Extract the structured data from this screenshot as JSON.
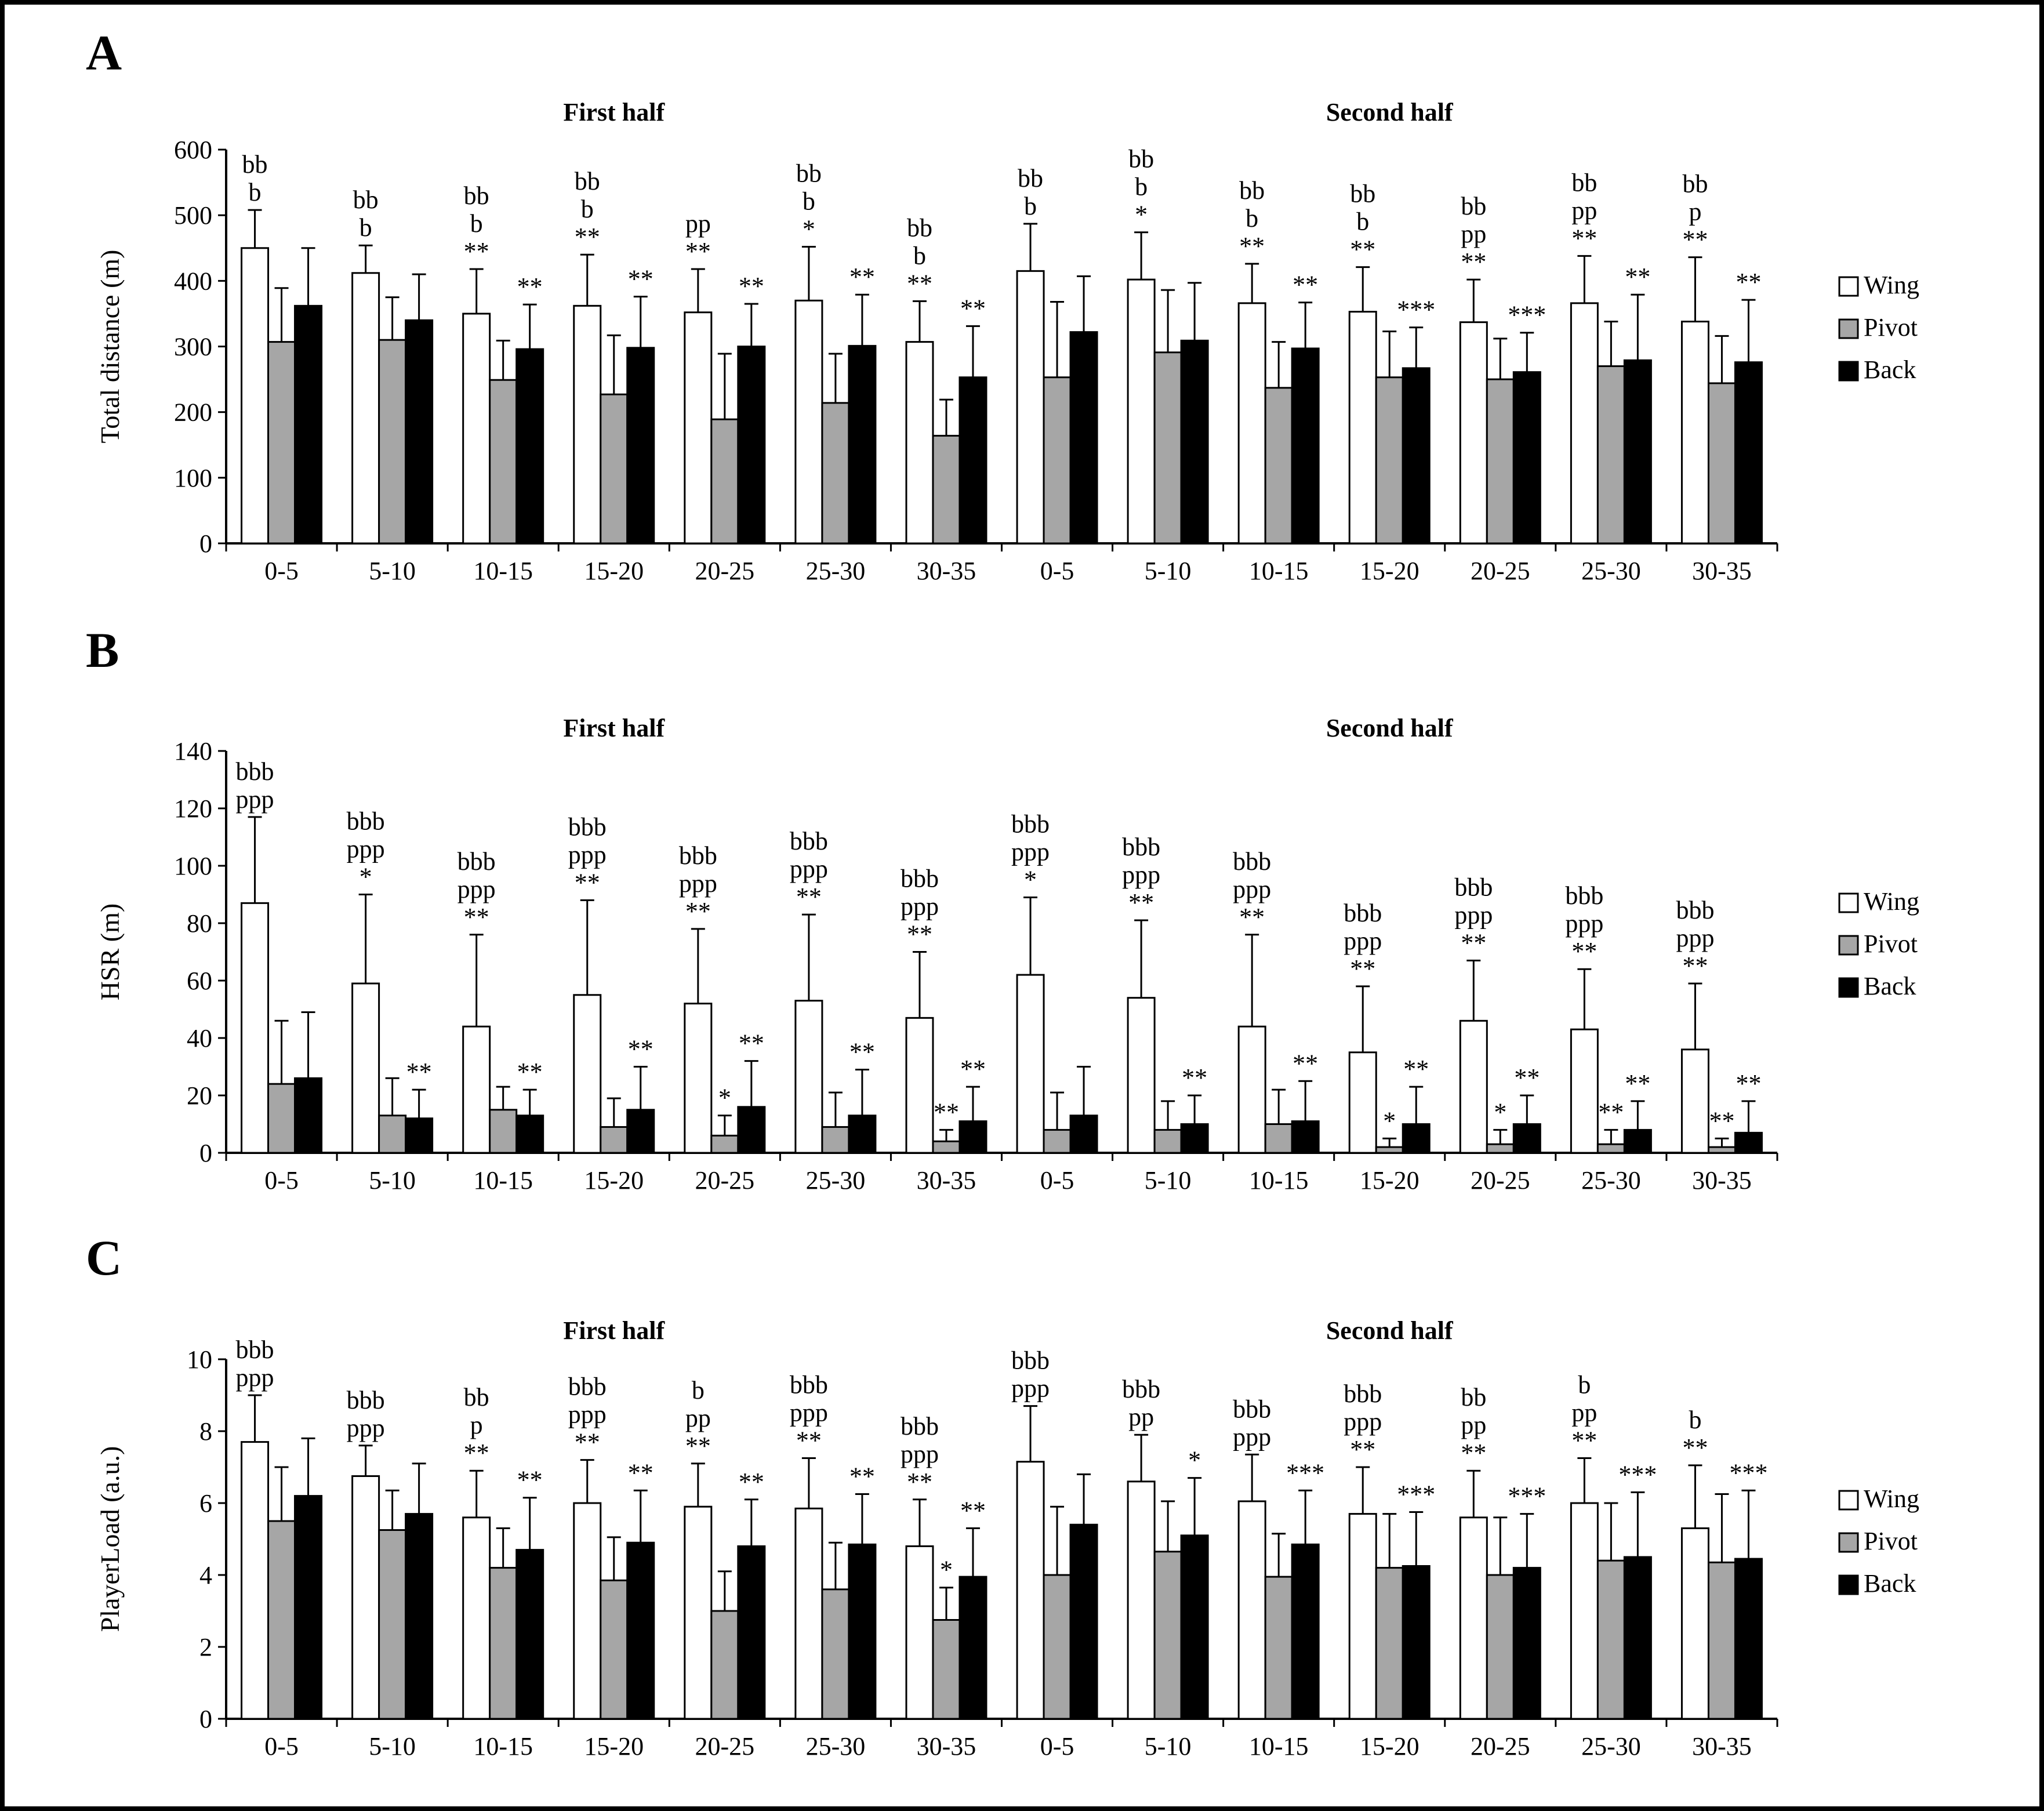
{
  "figure": {
    "background": "#ffffff",
    "border_color": "#000000"
  },
  "legend": {
    "position": "right",
    "items": [
      {
        "label": "Wing",
        "fill": "#ffffff"
      },
      {
        "label": "Pivot",
        "fill": "#a6a6a6"
      },
      {
        "label": "Back",
        "fill": "#000000"
      }
    ]
  },
  "chart_data": [
    {
      "type": "bar",
      "panel_label": "A",
      "ylabel": "Total distance (m)",
      "ylim": [
        0,
        600
      ],
      "ytick_step": 100,
      "grid": false,
      "section_titles": [
        "First half",
        "Second half"
      ],
      "categories": [
        "0-5",
        "5-10",
        "10-15",
        "15-20",
        "20-25",
        "25-30",
        "30-35",
        "0-5",
        "5-10",
        "10-15",
        "15-20",
        "20-25",
        "25-30",
        "30-35"
      ],
      "series": [
        {
          "name": "Wing",
          "fill": "#ffffff",
          "values": [
            450,
            412,
            350,
            362,
            352,
            370,
            307,
            415,
            402,
            366,
            353,
            337,
            366,
            338
          ],
          "errors": [
            58,
            42,
            68,
            78,
            66,
            82,
            62,
            72,
            72,
            60,
            68,
            65,
            72,
            98
          ],
          "annotations": [
            [
              "bb",
              "b"
            ],
            [
              "bb",
              "b"
            ],
            [
              "bb",
              "b",
              "**"
            ],
            [
              "bb",
              "b",
              "**"
            ],
            [
              "pp",
              "**"
            ],
            [
              "bb",
              "b",
              "*"
            ],
            [
              "bb",
              "b",
              "**"
            ],
            [
              "bb",
              "b"
            ],
            [
              "bb",
              "b",
              "*"
            ],
            [
              "bb",
              "b",
              "**"
            ],
            [
              "bb",
              "b",
              "**"
            ],
            [
              "bb",
              "pp",
              "**"
            ],
            [
              "bb",
              "pp",
              "**"
            ],
            [
              "bb",
              "p",
              "**"
            ]
          ]
        },
        {
          "name": "Pivot",
          "fill": "#a6a6a6",
          "values": [
            307,
            310,
            249,
            227,
            189,
            214,
            164,
            253,
            291,
            237,
            253,
            250,
            270,
            244
          ],
          "errors": [
            82,
            65,
            60,
            90,
            100,
            75,
            55,
            115,
            95,
            70,
            70,
            62,
            68,
            72
          ],
          "annotations": [
            null,
            null,
            null,
            null,
            null,
            null,
            null,
            null,
            null,
            null,
            null,
            null,
            null,
            null
          ]
        },
        {
          "name": "Back",
          "fill": "#000000",
          "values": [
            362,
            340,
            296,
            298,
            300,
            301,
            253,
            322,
            309,
            297,
            267,
            261,
            279,
            276
          ],
          "errors": [
            88,
            70,
            68,
            78,
            65,
            78,
            78,
            85,
            88,
            70,
            62,
            60,
            100,
            95
          ],
          "annotations": [
            null,
            null,
            [
              "**"
            ],
            [
              "**"
            ],
            [
              "**"
            ],
            [
              "**"
            ],
            [
              "**"
            ],
            null,
            null,
            [
              "**"
            ],
            [
              "***"
            ],
            [
              "***"
            ],
            [
              "**"
            ],
            [
              "**"
            ]
          ]
        }
      ]
    },
    {
      "type": "bar",
      "panel_label": "B",
      "ylabel": "HSR (m)",
      "ylim": [
        0,
        140
      ],
      "ytick_step": 20,
      "grid": false,
      "section_titles": [
        "First half",
        "Second half"
      ],
      "categories": [
        "0-5",
        "5-10",
        "10-15",
        "15-20",
        "20-25",
        "25-30",
        "30-35",
        "0-5",
        "5-10",
        "10-15",
        "15-20",
        "20-25",
        "25-30",
        "30-35"
      ],
      "series": [
        {
          "name": "Wing",
          "fill": "#ffffff",
          "values": [
            87,
            59,
            44,
            55,
            52,
            53,
            47,
            62,
            54,
            44,
            35,
            46,
            43,
            36
          ],
          "errors": [
            30,
            31,
            32,
            33,
            26,
            30,
            23,
            27,
            27,
            32,
            23,
            21,
            21,
            23
          ],
          "annotations": [
            [
              "bbb",
              "ppp"
            ],
            [
              "bbb",
              "ppp",
              "*"
            ],
            [
              "bbb",
              "ppp",
              "**"
            ],
            [
              "bbb",
              "ppp",
              "**"
            ],
            [
              "bbb",
              "ppp",
              "**"
            ],
            [
              "bbb",
              "ppp",
              "**"
            ],
            [
              "bbb",
              "ppp",
              "**"
            ],
            [
              "bbb",
              "ppp",
              "*"
            ],
            [
              "bbb",
              "ppp",
              "**"
            ],
            [
              "bbb",
              "ppp",
              "**"
            ],
            [
              "bbb",
              "ppp",
              "**"
            ],
            [
              "bbb",
              "ppp",
              "**"
            ],
            [
              "bbb",
              "ppp",
              "**"
            ],
            [
              "bbb",
              "ppp",
              "**"
            ]
          ]
        },
        {
          "name": "Pivot",
          "fill": "#a6a6a6",
          "values": [
            24,
            13,
            15,
            9,
            6,
            9,
            4,
            8,
            8,
            10,
            2,
            3,
            3,
            2
          ],
          "errors": [
            22,
            13,
            8,
            10,
            7,
            12,
            4,
            13,
            10,
            12,
            3,
            5,
            5,
            3
          ],
          "annotations": [
            null,
            null,
            null,
            null,
            [
              "*"
            ],
            null,
            [
              "**"
            ],
            null,
            null,
            null,
            [
              "*"
            ],
            [
              "*"
            ],
            [
              "**"
            ],
            [
              "**"
            ]
          ]
        },
        {
          "name": "Back",
          "fill": "#000000",
          "values": [
            26,
            12,
            13,
            15,
            16,
            13,
            11,
            13,
            10,
            11,
            10,
            10,
            8,
            7
          ],
          "errors": [
            23,
            10,
            9,
            15,
            16,
            16,
            12,
            17,
            10,
            14,
            13,
            10,
            10,
            11
          ],
          "annotations": [
            null,
            [
              "**"
            ],
            [
              "**"
            ],
            [
              "**"
            ],
            [
              "**"
            ],
            [
              "**"
            ],
            [
              "**"
            ],
            null,
            [
              "**"
            ],
            [
              "**"
            ],
            [
              "**"
            ],
            [
              "**"
            ],
            [
              "**"
            ],
            [
              "**"
            ]
          ]
        }
      ]
    },
    {
      "type": "bar",
      "panel_label": "C",
      "ylabel": "PlayerLoad (a.u.)",
      "ylim": [
        0,
        10
      ],
      "ytick_step": 2,
      "grid": false,
      "section_titles": [
        "First half",
        "Second half"
      ],
      "categories": [
        "0-5",
        "5-10",
        "10-15",
        "15-20",
        "20-25",
        "25-30",
        "30-35",
        "0-5",
        "5-10",
        "10-15",
        "15-20",
        "20-25",
        "25-30",
        "30-35"
      ],
      "series": [
        {
          "name": "Wing",
          "fill": "#ffffff",
          "values": [
            7.7,
            6.75,
            5.6,
            6.0,
            5.9,
            5.85,
            4.8,
            7.15,
            6.6,
            6.05,
            5.7,
            5.6,
            6.0,
            5.3
          ],
          "errors": [
            1.3,
            0.85,
            1.3,
            1.2,
            1.2,
            1.4,
            1.3,
            1.55,
            1.3,
            1.3,
            1.3,
            1.3,
            1.25,
            1.75
          ],
          "annotations": [
            [
              "bbb",
              "ppp"
            ],
            [
              "bbb",
              "ppp"
            ],
            [
              "bb",
              "p",
              "**"
            ],
            [
              "bbb",
              "ppp",
              "**"
            ],
            [
              "b",
              "pp",
              "**"
            ],
            [
              "bbb",
              "ppp",
              "**"
            ],
            [
              "bbb",
              "ppp",
              "**"
            ],
            [
              "bbb",
              "ppp"
            ],
            [
              "bbb",
              "pp"
            ],
            [
              "bbb",
              "ppp"
            ],
            [
              "bbb",
              "ppp",
              "**"
            ],
            [
              "bb",
              "pp",
              "**"
            ],
            [
              "b",
              "pp",
              "**"
            ],
            [
              "b",
              "**"
            ]
          ]
        },
        {
          "name": "Pivot",
          "fill": "#a6a6a6",
          "values": [
            5.5,
            5.25,
            4.2,
            3.85,
            3.0,
            3.6,
            2.75,
            4.0,
            4.65,
            3.95,
            4.2,
            4.0,
            4.4,
            4.35
          ],
          "errors": [
            1.5,
            1.1,
            1.1,
            1.2,
            1.1,
            1.3,
            0.9,
            1.9,
            1.4,
            1.2,
            1.5,
            1.6,
            1.6,
            1.9
          ],
          "annotations": [
            null,
            null,
            null,
            null,
            null,
            null,
            [
              "*"
            ],
            null,
            null,
            null,
            null,
            null,
            null,
            null
          ]
        },
        {
          "name": "Back",
          "fill": "#000000",
          "values": [
            6.2,
            5.7,
            4.7,
            4.9,
            4.8,
            4.85,
            3.95,
            5.4,
            5.1,
            4.85,
            4.25,
            4.2,
            4.5,
            4.45
          ],
          "errors": [
            1.6,
            1.4,
            1.45,
            1.45,
            1.3,
            1.4,
            1.35,
            1.4,
            1.6,
            1.5,
            1.5,
            1.5,
            1.8,
            1.9
          ],
          "annotations": [
            null,
            null,
            [
              "**"
            ],
            [
              "**"
            ],
            [
              "**"
            ],
            [
              "**"
            ],
            [
              "**"
            ],
            null,
            [
              "*"
            ],
            [
              "***"
            ],
            [
              "***"
            ],
            [
              "***"
            ],
            [
              "***"
            ],
            [
              "***"
            ]
          ]
        }
      ]
    }
  ]
}
